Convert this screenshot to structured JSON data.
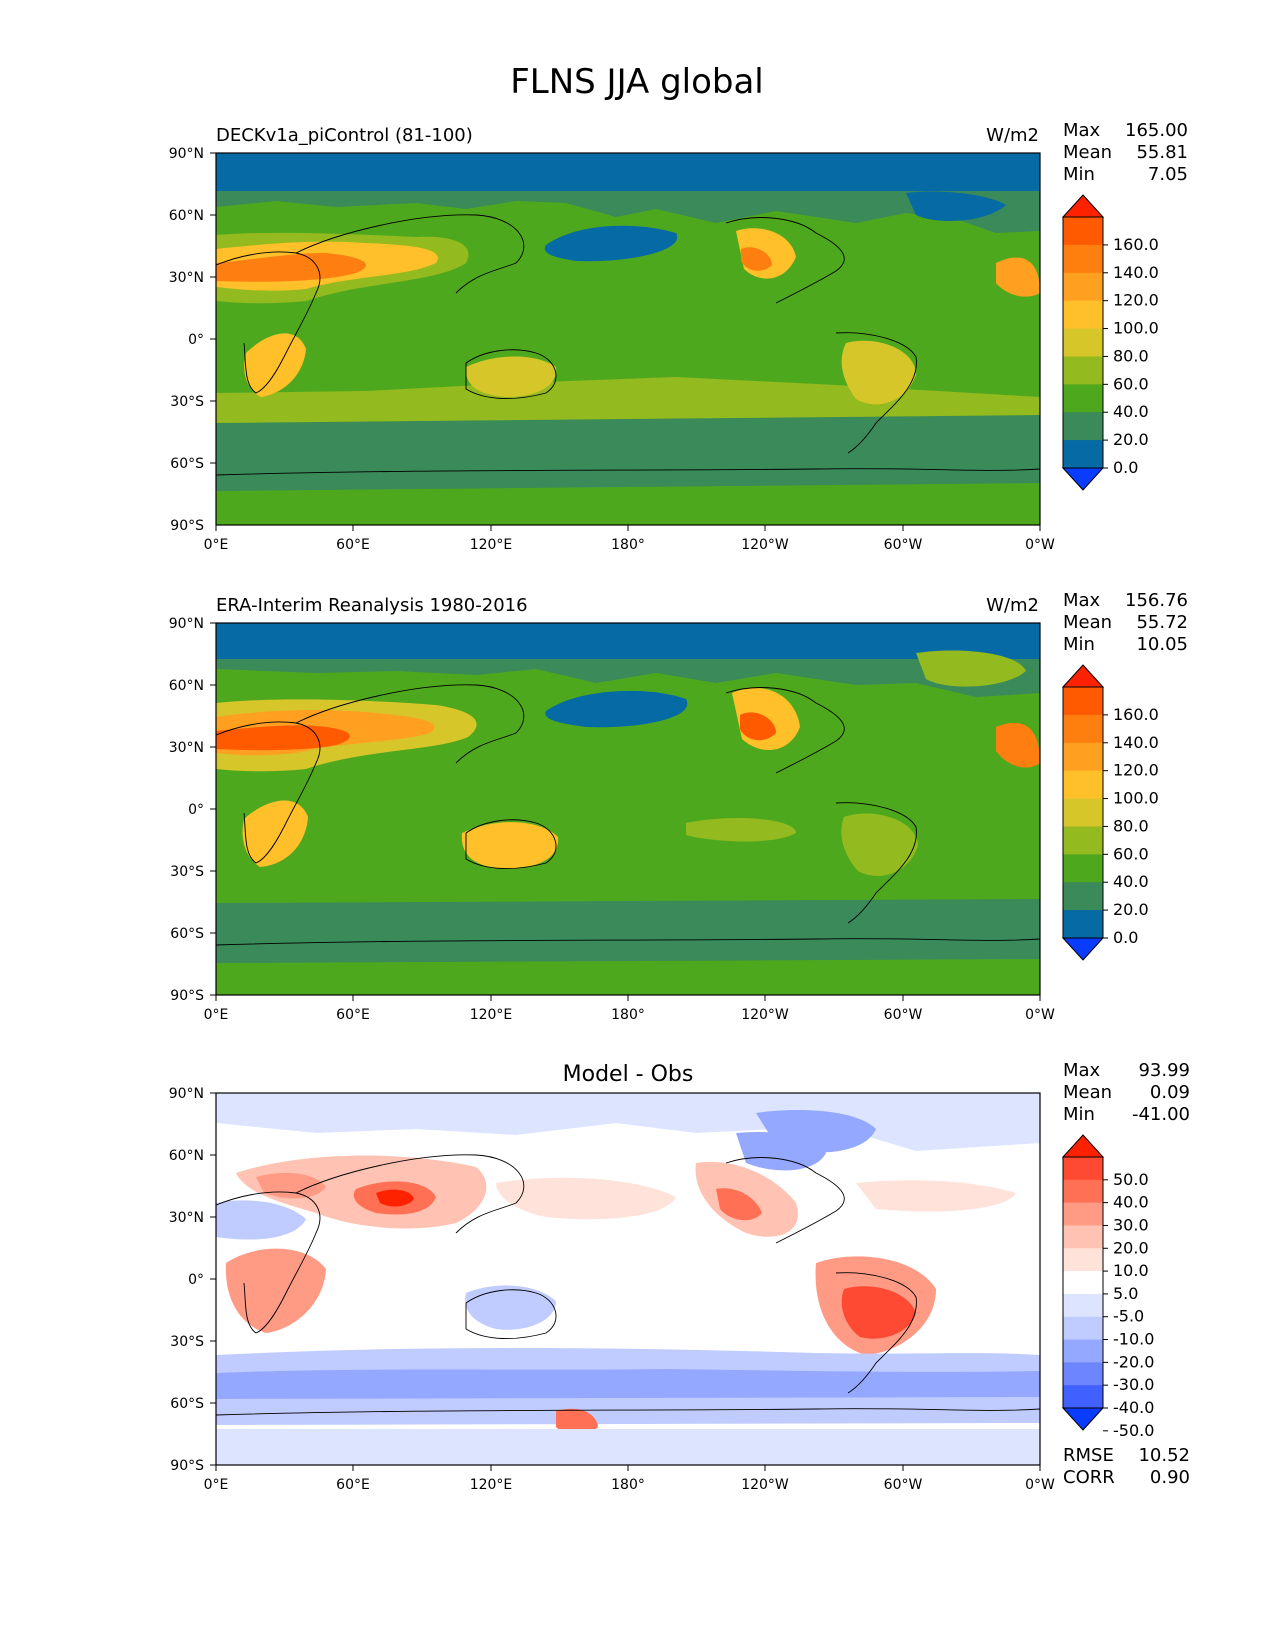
{
  "figure": {
    "title": "FLNS JJA global"
  },
  "panels": [
    {
      "id": "test",
      "title_left": "DECKv1a_piControl (81-100)",
      "title_center": "",
      "units": "W/m2",
      "stats": [
        {
          "label": "Max",
          "value": "165.00"
        },
        {
          "label": "Mean",
          "value": "55.81"
        },
        {
          "label": "Min",
          "value": "7.05"
        }
      ],
      "metrics": [],
      "colormap": "abs"
    },
    {
      "id": "ref",
      "title_left": "ERA-Interim Reanalysis 1980-2016",
      "title_center": "",
      "units": "W/m2",
      "stats": [
        {
          "label": "Max",
          "value": "156.76"
        },
        {
          "label": "Mean",
          "value": "55.72"
        },
        {
          "label": "Min",
          "value": "10.05"
        }
      ],
      "metrics": [],
      "colormap": "abs"
    },
    {
      "id": "diff",
      "title_left": "",
      "title_center": "Model - Obs",
      "units": "",
      "stats": [
        {
          "label": "Max",
          "value": "93.99"
        },
        {
          "label": "Mean",
          "value": "0.09"
        },
        {
          "label": "Min",
          "value": "-41.00"
        }
      ],
      "metrics": [
        {
          "label": "RMSE",
          "value": "10.52"
        },
        {
          "label": "CORR",
          "value": "0.90"
        }
      ],
      "colormap": "diff"
    }
  ],
  "axes": {
    "x_ticks": [
      "0°E",
      "60°E",
      "120°E",
      "180°",
      "120°W",
      "60°W",
      "0°W"
    ],
    "y_ticks": [
      "90°N",
      "60°N",
      "30°N",
      "0°",
      "30°S",
      "60°S",
      "90°S"
    ]
  },
  "colorbars": {
    "abs": {
      "labels": [
        "160.0",
        "140.0",
        "120.0",
        "100.0",
        "80.0",
        "60.0",
        "40.0",
        "20.0",
        "0.0"
      ],
      "colors": [
        "#ff2200",
        "#ff5a00",
        "#ff7e10",
        "#ffa020",
        "#ffc02a",
        "#d6c62a",
        "#93ba1e",
        "#4ea81e",
        "#3a8a5a",
        "#066aa5",
        "#0a3cff"
      ]
    },
    "diff": {
      "labels": [
        "50.0",
        "40.0",
        "30.0",
        "20.0",
        "10.0",
        "5.0",
        "-5.0",
        "-10.0",
        "-20.0",
        "-30.0",
        "-40.0",
        "-50.0"
      ],
      "colors": [
        "#ff2200",
        "#ff4a33",
        "#ff7055",
        "#ff9b85",
        "#ffc2b3",
        "#ffe2da",
        "#ffffff",
        "#dde4ff",
        "#c0ccff",
        "#95a8ff",
        "#6d86ff",
        "#4060ff",
        "#0a3cff"
      ]
    }
  },
  "chart_data": {
    "type": "heatmap",
    "title": "FLNS JJA global",
    "variable": "FLNS",
    "season": "JJA",
    "units": "W/m2",
    "x_axis": {
      "ticks": [
        "0°E",
        "60°E",
        "120°E",
        "180°",
        "120°W",
        "60°W",
        "0°W"
      ],
      "range": [
        0,
        360
      ]
    },
    "y_axis": {
      "ticks": [
        "90°N",
        "60°N",
        "30°N",
        "0°",
        "30°S",
        "60°S",
        "90°S"
      ],
      "range": [
        -90,
        90
      ]
    },
    "panels": [
      {
        "name": "DECKv1a_piControl (81-100)",
        "max": 165.0,
        "mean": 55.81,
        "min": 7.05,
        "levels": [
          0,
          20,
          40,
          60,
          80,
          100,
          120,
          140,
          160
        ]
      },
      {
        "name": "ERA-Interim Reanalysis 1980-2016",
        "max": 156.76,
        "mean": 55.72,
        "min": 10.05,
        "levels": [
          0,
          20,
          40,
          60,
          80,
          100,
          120,
          140,
          160
        ]
      },
      {
        "name": "Model - Obs",
        "max": 93.99,
        "mean": 0.09,
        "min": -41.0,
        "rmse": 10.52,
        "corr": 0.9,
        "levels": [
          -50,
          -40,
          -30,
          -20,
          -10,
          -5,
          5,
          10,
          20,
          30,
          40,
          50
        ]
      }
    ]
  }
}
